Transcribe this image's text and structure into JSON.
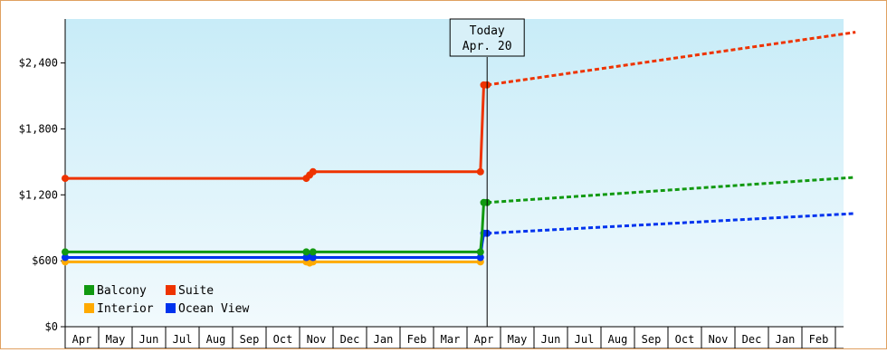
{
  "chart_data": {
    "type": "line",
    "title": "",
    "xlabel": "",
    "ylabel": "",
    "ylim": [
      0,
      2800
    ],
    "y_ticks": [
      0,
      600,
      1200,
      1800,
      2400
    ],
    "y_tick_labels": [
      "$0",
      "$600",
      "$1,200",
      "$1,800",
      "$2,400"
    ],
    "x_tick_labels": [
      "Apr",
      "May",
      "Jun",
      "Jul",
      "Aug",
      "Sep",
      "Oct",
      "Nov",
      "Dec",
      "Jan",
      "Feb",
      "Mar",
      "Apr",
      "May",
      "Jun",
      "Jul",
      "Aug",
      "Sep",
      "Oct",
      "Nov",
      "Dec",
      "Jan",
      "Feb"
    ],
    "today_marker": {
      "line1": "Today",
      "line2": "Apr. 20",
      "month_index": 12.6
    },
    "legend_position": "bottom-left",
    "series": [
      {
        "name": "Balcony",
        "color": "#119911",
        "history": [
          [
            0,
            680
          ],
          [
            7.2,
            680
          ],
          [
            7.4,
            680
          ],
          [
            12.4,
            680
          ],
          [
            12.45,
            850
          ],
          [
            12.5,
            1130
          ],
          [
            12.6,
            1130
          ]
        ],
        "forecast": [
          [
            12.6,
            1130
          ],
          [
            23.6,
            1360
          ]
        ]
      },
      {
        "name": "Suite",
        "color": "#ee3300",
        "history": [
          [
            0,
            1350
          ],
          [
            7.2,
            1350
          ],
          [
            7.3,
            1380
          ],
          [
            7.4,
            1410
          ],
          [
            12.4,
            1410
          ],
          [
            12.45,
            1800
          ],
          [
            12.5,
            2200
          ],
          [
            12.6,
            2200
          ]
        ],
        "forecast": [
          [
            12.6,
            2200
          ],
          [
            23.6,
            2680
          ]
        ]
      },
      {
        "name": "Interior",
        "color": "#ffaa00",
        "history": [
          [
            0,
            590
          ],
          [
            7.2,
            590
          ],
          [
            7.3,
            580
          ],
          [
            7.4,
            590
          ],
          [
            12.4,
            590
          ]
        ],
        "forecast": []
      },
      {
        "name": "Ocean View",
        "color": "#0033ee",
        "history": [
          [
            0,
            630
          ],
          [
            7.2,
            630
          ],
          [
            7.3,
            640
          ],
          [
            7.4,
            630
          ],
          [
            12.4,
            630
          ],
          [
            12.45,
            750
          ],
          [
            12.5,
            850
          ],
          [
            12.6,
            850
          ]
        ],
        "forecast": [
          [
            12.6,
            850
          ],
          [
            23.6,
            1030
          ]
        ]
      }
    ]
  }
}
